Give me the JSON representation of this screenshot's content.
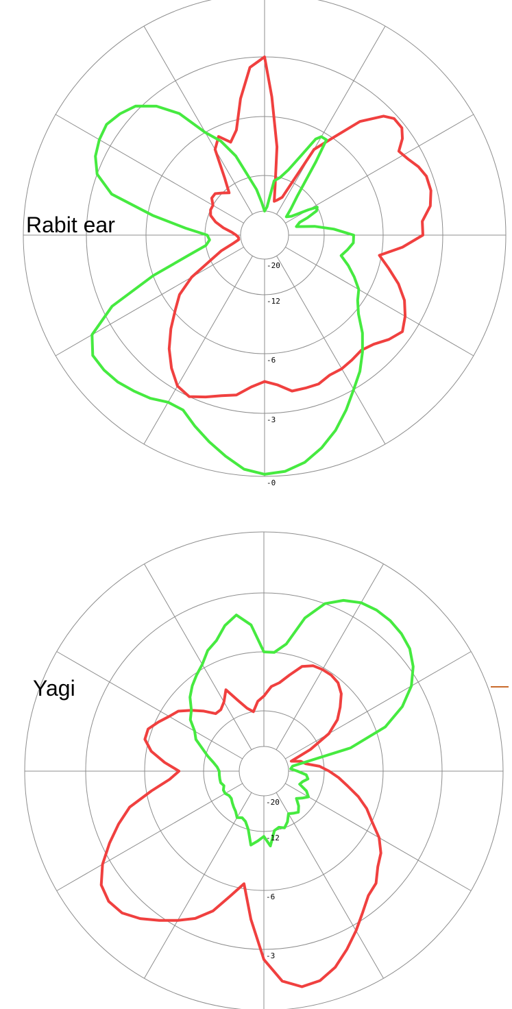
{
  "colors": {
    "background": "#ffffff",
    "grid": "#8c8c8c",
    "red_series": "#f0403f",
    "green_series": "#46ea40",
    "label": "#000000",
    "tick_label": "#000000",
    "stray_mark": "#c96a2a"
  },
  "chart_data": [
    {
      "type": "polar-line",
      "title": "",
      "panel_label": "Rabit ear",
      "radial_axis": {
        "unit": "dB",
        "scale": "nonlinear",
        "ticks": [
          -20,
          -12,
          -6,
          -3,
          0
        ],
        "tick_labels": [
          "-20",
          "-12",
          "-6",
          "-3",
          "-0"
        ],
        "range": [
          -20,
          0
        ]
      },
      "angular_axis": {
        "spokes": 12,
        "step_deg": 30,
        "grid": true
      },
      "legend": "none",
      "series": [
        {
          "color": "#f0403f",
          "angles_deg": [
            0,
            3,
            8,
            12,
            16,
            20,
            25,
            30,
            35,
            40,
            45,
            48,
            52,
            55,
            58,
            62,
            66,
            70,
            75,
            80,
            85,
            90,
            95,
            100,
            105,
            110,
            115,
            120,
            125,
            130,
            135,
            140,
            145,
            150,
            155,
            160,
            165,
            170,
            175,
            180,
            185,
            190,
            195,
            200,
            205,
            210,
            215,
            220,
            225,
            230,
            235,
            240,
            245,
            250,
            255,
            260,
            265,
            270,
            275,
            280,
            285,
            290,
            295,
            300,
            305,
            310,
            315,
            320,
            325,
            330,
            335,
            340,
            345,
            350,
            355,
            360
          ],
          "values_db": [
            -3,
            -5,
            -9,
            -14,
            -17.5,
            -17,
            -16,
            -8,
            -6,
            -4.5,
            -3.5,
            -3.2,
            -3.2,
            -3.5,
            -4,
            -3.8,
            -3.5,
            -3.3,
            -3.3,
            -3.5,
            -4,
            -4,
            -5,
            -6.2,
            -5.5,
            -4.8,
            -4.2,
            -3.8,
            -3.5,
            -3.8,
            -4.2,
            -4.4,
            -4.3,
            -4.2,
            -4.2,
            -4,
            -4,
            -4,
            -4.4,
            -4.6,
            -4.3,
            -3.8,
            -3.6,
            -3.3,
            -3,
            -3.2,
            -3.8,
            -4.5,
            -5.3,
            -6.2,
            -7.5,
            -9.5,
            -12,
            -15,
            -18,
            -19.5,
            -19.5,
            -19,
            -18,
            -16,
            -14,
            -12.5,
            -12,
            -12,
            -11.5,
            -11.5,
            -12,
            -13,
            -11,
            -8,
            -7,
            -8,
            -7,
            -5,
            -3.5,
            -3
          ]
        },
        {
          "color": "#46ea40",
          "angles_deg": [
            0,
            5,
            10,
            15,
            20,
            25,
            28,
            30,
            33,
            35,
            40,
            45,
            50,
            55,
            60,
            62,
            65,
            68,
            70,
            75,
            80,
            85,
            90,
            95,
            100,
            105,
            110,
            115,
            120,
            125,
            130,
            135,
            140,
            145,
            150,
            155,
            160,
            165,
            170,
            175,
            180,
            185,
            190,
            195,
            200,
            205,
            210,
            215,
            220,
            225,
            230,
            235,
            240,
            245,
            250,
            255,
            260,
            265,
            270,
            275,
            280,
            285,
            290,
            295,
            300,
            305,
            310,
            315,
            320,
            325,
            330,
            335,
            340,
            345,
            350,
            355,
            360
          ],
          "values_db": [
            -20,
            -19,
            -13,
            -12,
            -11,
            -9,
            -7,
            -6.5,
            -6.5,
            -9,
            -14,
            -17,
            -19,
            -18,
            -14,
            -12,
            -12.5,
            -15,
            -17,
            -18,
            -14,
            -11,
            -9,
            -9,
            -9.5,
            -10,
            -9,
            -8,
            -7,
            -6.5,
            -5.8,
            -5,
            -4.3,
            -3.6,
            -3,
            -2.3,
            -1.6,
            -1,
            -0.5,
            -0.2,
            -0.1,
            -0.3,
            -0.8,
            -1.3,
            -1.8,
            -2.3,
            -2.3,
            -2,
            -1.8,
            -1.6,
            -1.5,
            -1.5,
            -2,
            -3.5,
            -6,
            -10,
            -12,
            -13,
            -12.5,
            -10,
            -6.5,
            -4,
            -3,
            -2.6,
            -2.4,
            -2.3,
            -2.5,
            -2.8,
            -3.5,
            -4.5,
            -6,
            -7.5,
            -9.5,
            -12,
            -15,
            -18,
            -20
          ]
        }
      ]
    },
    {
      "type": "polar-line",
      "title": "",
      "panel_label": "Yagi",
      "radial_axis": {
        "unit": "dB",
        "scale": "nonlinear",
        "ticks": [
          -20,
          -12,
          -6,
          -3,
          0
        ],
        "tick_labels": [
          "-20",
          "-12",
          "-6",
          "-3",
          "-0"
        ],
        "range": [
          -20,
          0
        ]
      },
      "angular_axis": {
        "spokes": 12,
        "step_deg": 30,
        "grid": true
      },
      "legend": "none",
      "series": [
        {
          "color": "#f0403f",
          "angles_deg": [
            0,
            5,
            10,
            15,
            20,
            25,
            30,
            35,
            40,
            45,
            50,
            55,
            60,
            65,
            70,
            75,
            80,
            85,
            90,
            95,
            100,
            105,
            110,
            115,
            120,
            125,
            130,
            135,
            140,
            145,
            150,
            155,
            160,
            165,
            170,
            175,
            180,
            185,
            190,
            195,
            200,
            205,
            210,
            215,
            220,
            225,
            230,
            235,
            240,
            245,
            250,
            255,
            260,
            265,
            270,
            275,
            280,
            285,
            290,
            295,
            300,
            305,
            310,
            315,
            320,
            325,
            330,
            335,
            340,
            345,
            350,
            355,
            360
          ],
          "values_db": [
            -10.5,
            -9.5,
            -9,
            -8,
            -6.8,
            -6.3,
            -6.2,
            -6.2,
            -6.4,
            -7,
            -8,
            -9,
            -10.5,
            -14,
            -19,
            -17,
            -16,
            -13,
            -11.5,
            -10.5,
            -9.5,
            -8.2,
            -7,
            -6,
            -5.3,
            -4.8,
            -4.5,
            -4,
            -3.8,
            -3.3,
            -2.7,
            -2.1,
            -1.5,
            -1.1,
            -1,
            -1.4,
            -2.5,
            -4.5,
            -6.5,
            -5.5,
            -4.5,
            -3.8,
            -3.3,
            -2.8,
            -2.3,
            -1.9,
            -1.8,
            -2,
            -2.6,
            -3.4,
            -4.2,
            -5,
            -6.5,
            -8.5,
            -9.5,
            -8,
            -6.5,
            -5.8,
            -5.8,
            -6.3,
            -7,
            -7.5,
            -8.5,
            -9.5,
            -10.5,
            -10.5,
            -10,
            -9,
            -10.5,
            -11.5,
            -12,
            -11,
            -10.5
          ]
        },
        {
          "color": "#46ea40",
          "angles_deg": [
            0,
            5,
            10,
            15,
            20,
            25,
            30,
            35,
            40,
            45,
            50,
            55,
            60,
            65,
            70,
            75,
            80,
            85,
            90,
            95,
            100,
            105,
            110,
            115,
            120,
            125,
            130,
            135,
            140,
            145,
            150,
            155,
            160,
            165,
            170,
            175,
            180,
            185,
            190,
            195,
            200,
            205,
            210,
            215,
            220,
            225,
            230,
            235,
            240,
            245,
            250,
            255,
            260,
            265,
            270,
            275,
            280,
            285,
            290,
            295,
            300,
            305,
            310,
            315,
            320,
            325,
            330,
            335,
            340,
            345,
            350,
            355,
            360
          ],
          "values_db": [
            -6,
            -6,
            -5.5,
            -4,
            -3,
            -2.5,
            -2.2,
            -2.1,
            -2.1,
            -2.2,
            -2.4,
            -2.8,
            -3.4,
            -4.3,
            -5.5,
            -9,
            -19,
            -19.5,
            -18,
            -16,
            -15.5,
            -16.5,
            -17,
            -15,
            -14,
            -15,
            -16,
            -14.5,
            -13.5,
            -14,
            -14.5,
            -13,
            -12,
            -12.5,
            -12,
            -10.5,
            -11.5,
            -11,
            -10.5,
            -12,
            -13.5,
            -14,
            -13.5,
            -14.5,
            -15,
            -15.5,
            -16,
            -16,
            -15.5,
            -15.5,
            -16,
            -15.5,
            -15.5,
            -15.5,
            -15.5,
            -15,
            -14,
            -12.5,
            -11.5,
            -10.5,
            -10,
            -9,
            -8.5,
            -7.5,
            -6.8,
            -6.2,
            -5.8,
            -5.3,
            -5,
            -4.4,
            -4,
            -4.6,
            -6
          ]
        }
      ]
    }
  ]
}
